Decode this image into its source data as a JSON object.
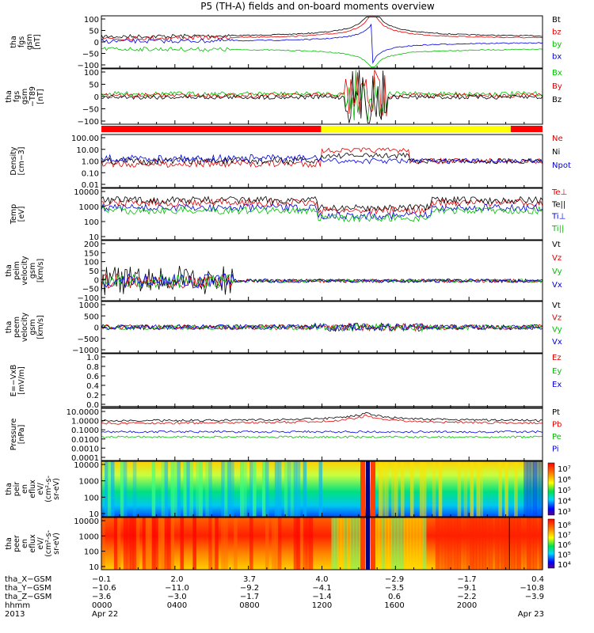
{
  "title": "P5 (TH-A) fields and on-board moments overview",
  "chart_data": [
    {
      "type": "line",
      "key": "fgs",
      "ylabel": [
        "tha",
        "fgs",
        "gsm",
        "[nT]"
      ],
      "yticks": [
        "100",
        "50",
        "0",
        "−50",
        "−100"
      ],
      "ylim": [
        -100,
        100
      ],
      "legend": [
        "Bt",
        "bz",
        "by",
        "bx"
      ],
      "series": [
        {
          "name": "Bt",
          "color": "#000000"
        },
        {
          "name": "bz",
          "color": "#e00000"
        },
        {
          "name": "by",
          "color": "#00c000"
        },
        {
          "name": "bx",
          "color": "#0000e0"
        }
      ]
    },
    {
      "type": "line",
      "key": "fgs_t89",
      "ylabel": [
        "tha",
        "fgs",
        "gsm",
        "−T89",
        "[nT]"
      ],
      "yticks": [
        "100",
        "50",
        "0",
        "−50",
        "−100"
      ],
      "ylim": [
        -125,
        125
      ],
      "legend": [
        "Bx",
        "By",
        "Bz"
      ],
      "series": [
        {
          "name": "Bx",
          "color": "#00c000"
        },
        {
          "name": "By",
          "color": "#e00000"
        },
        {
          "name": "Bz",
          "color": "#000000"
        }
      ]
    },
    {
      "type": "line",
      "key": "density",
      "ylabel": [
        "Density",
        "[cm−3]"
      ],
      "yticks": [
        "100.00",
        "10.00",
        "1.00",
        "0.10",
        "0.01"
      ],
      "ylim": [
        0.005,
        300
      ],
      "log": true,
      "legend": [
        "Ne",
        "Ni",
        "Npot"
      ],
      "series": [
        {
          "name": "Ne",
          "color": "#e00000"
        },
        {
          "name": "Ni",
          "color": "#000000"
        },
        {
          "name": "Npot",
          "color": "#0000e0"
        }
      ]
    },
    {
      "type": "line",
      "key": "temp",
      "ylabel": [
        "Temp",
        "[eV]"
      ],
      "yticks": [
        "10000",
        "1000",
        "100",
        "10"
      ],
      "ylim": [
        3,
        20000
      ],
      "log": true,
      "legend": [
        "Te⊥",
        "Te||",
        "Ti⊥",
        "Ti||"
      ],
      "series": [
        {
          "name": "Te⊥",
          "color": "#e00000"
        },
        {
          "name": "Te||",
          "color": "#000000"
        },
        {
          "name": "Ti⊥",
          "color": "#0000e0"
        },
        {
          "name": "Ti||",
          "color": "#00c000"
        }
      ]
    },
    {
      "type": "line",
      "key": "peiv",
      "ylabel": [
        "tha",
        "peim",
        "velocity",
        "gsm",
        "[km/s]"
      ],
      "yticks": [
        "200",
        "150",
        "100",
        "50",
        "0",
        "−50",
        "−100"
      ],
      "ylim": [
        -100,
        200
      ],
      "legend": [
        "Vt",
        "Vz",
        "Vy",
        "Vx"
      ],
      "series": [
        {
          "name": "Vt",
          "color": "#000000"
        },
        {
          "name": "Vz",
          "color": "#e00000"
        },
        {
          "name": "Vy",
          "color": "#00c000"
        },
        {
          "name": "Vx",
          "color": "#0000e0"
        }
      ]
    },
    {
      "type": "line",
      "key": "peev",
      "ylabel": [
        "tha",
        "peem",
        "velocity",
        "gsm",
        "[km/s]"
      ],
      "yticks": [
        "1000",
        "500",
        "0",
        "−500",
        "−1000"
      ],
      "ylim": [
        -1000,
        1000
      ],
      "legend": [
        "Vt",
        "Vz",
        "Vy",
        "Vx"
      ],
      "series": [
        {
          "name": "Vt",
          "color": "#000000"
        },
        {
          "name": "Vz",
          "color": "#e00000"
        },
        {
          "name": "Vy",
          "color": "#00c000"
        },
        {
          "name": "Vx",
          "color": "#0000e0"
        }
      ]
    },
    {
      "type": "line",
      "key": "efield",
      "ylabel": [
        "E=−VxB",
        "[mV/m]"
      ],
      "yticks": [
        "1.0",
        "0.8",
        "0.6",
        "0.4",
        "0.2",
        "0.0"
      ],
      "ylim": [
        0,
        1
      ],
      "legend": [
        "Ez",
        "Ey",
        "Ex"
      ],
      "series": [
        {
          "name": "Ez",
          "color": "#e00000"
        },
        {
          "name": "Ey",
          "color": "#00c000"
        },
        {
          "name": "Ex",
          "color": "#0000e0"
        }
      ]
    },
    {
      "type": "line",
      "key": "pressure",
      "ylabel": [
        "Pressure",
        "[nPa]"
      ],
      "yticks": [
        "10.0000",
        "1.0000",
        "0.1000",
        "0.0100",
        "0.0010",
        "0.0001"
      ],
      "ylim": [
        0.0001,
        100
      ],
      "log": true,
      "legend": [
        "Pt",
        "Pb",
        "Pe",
        "Pi"
      ],
      "series": [
        {
          "name": "Pt",
          "color": "#000000"
        },
        {
          "name": "Pb",
          "color": "#e00000"
        },
        {
          "name": "Pe",
          "color": "#00c000"
        },
        {
          "name": "Pi",
          "color": "#0000e0"
        }
      ]
    },
    {
      "type": "heatmap",
      "key": "peir",
      "ylabel": [
        "tha",
        "peir",
        "en",
        "eflux",
        "eV/",
        "(cm²-s-",
        "sr-eV)"
      ],
      "yticks": [
        "10000",
        "1000",
        "100",
        "10"
      ],
      "colorbar": [
        "10⁷",
        "10⁶",
        "10⁵",
        "10⁴",
        "10³"
      ]
    },
    {
      "type": "heatmap",
      "key": "peer",
      "ylabel": [
        "tha",
        "peer",
        "en",
        "eflux",
        "eV/",
        "(cm²-s-",
        "sr-eV)"
      ],
      "yticks": [
        "10000",
        "1000",
        "100",
        "10"
      ],
      "colorbar": [
        "10⁸",
        "10⁷",
        "10⁶",
        "10⁵",
        "10⁴"
      ]
    }
  ],
  "ephemeris": {
    "labels": [
      "tha_X−GSM",
      "tha_Y−GSM",
      "tha_Z−GSM",
      "hhmm",
      "2013"
    ],
    "columns": [
      {
        "x": "−0.1",
        "y": "−10.6",
        "z": "−3.6",
        "hhmm": "0000",
        "date": "Apr 22"
      },
      {
        "x": "2.0",
        "y": "−11.0",
        "z": "−3.0",
        "hhmm": "0400",
        "date": ""
      },
      {
        "x": "3.7",
        "y": "−9.2",
        "z": "−1.7",
        "hhmm": "0800",
        "date": ""
      },
      {
        "x": "4.0",
        "y": "−4.1",
        "z": "−1.4",
        "hhmm": "1200",
        "date": ""
      },
      {
        "x": "−2.9",
        "y": "−3.5",
        "z": "0.6",
        "hhmm": "1600",
        "date": ""
      },
      {
        "x": "−1.7",
        "y": "−9.1",
        "z": "−2.2",
        "hhmm": "2000",
        "date": ""
      },
      {
        "x": "0.4",
        "y": "−10.8",
        "z": "−3.9",
        "hhmm": "",
        "date": "Apr 23"
      }
    ]
  }
}
